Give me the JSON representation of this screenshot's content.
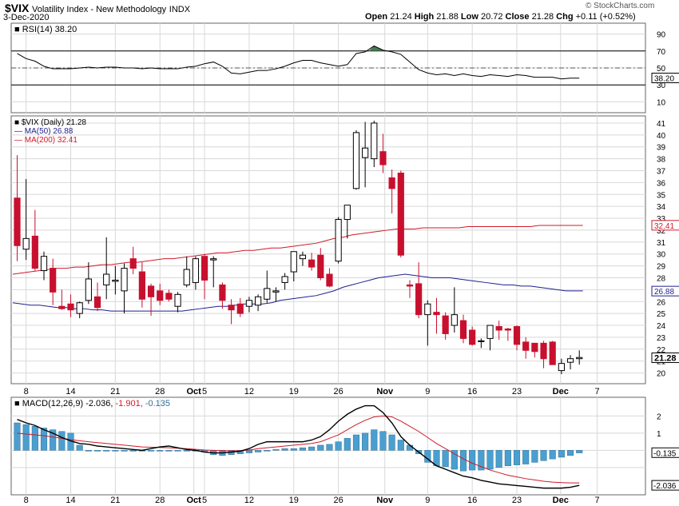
{
  "header": {
    "symbol": "$VIX",
    "name": "Volatility Index - New Methodology",
    "exchange": "INDX",
    "date": "3-Dec-2020",
    "open_label": "Open",
    "open_value": "21.24",
    "high_label": "High",
    "high_value": "21.88",
    "low_label": "Low",
    "low_value": "20.72",
    "close_label": "Close",
    "close_value": "21.28",
    "chg_label": "Chg",
    "chg_value": "+0.11 (+0.52%)",
    "watermark": "© StockCharts.com"
  },
  "colors": {
    "up": "#ffffff",
    "down": "#c8102e",
    "black": "#000000",
    "ma50": "#1f1f8f",
    "ma200": "#d01a2a",
    "macd_hist": "#4a9fd0",
    "rsi_fill": "#4a7a52",
    "grid": "#d8d8d8"
  },
  "chart_data": [
    {
      "type": "line",
      "title": "RSI(14) 38.20",
      "indicator": "RSI(14)",
      "last_value": "38.20",
      "y_ticks": [
        "90",
        "70",
        "50",
        "30",
        "10"
      ],
      "reference_lines": [
        70,
        30
      ],
      "midline": 50,
      "ylim": [
        0,
        100
      ],
      "values": [
        67,
        61,
        58,
        52,
        49,
        49,
        49,
        50,
        51,
        50,
        51,
        51,
        50,
        50,
        49,
        50,
        49,
        49,
        49,
        51,
        52,
        55,
        57,
        52,
        44,
        43,
        45,
        47,
        47,
        49,
        52,
        56,
        59,
        59,
        56,
        54,
        52,
        54,
        67,
        69,
        76,
        71,
        69,
        66,
        57,
        48,
        44,
        42,
        43,
        41,
        43,
        41,
        40,
        42,
        41,
        40,
        42,
        41,
        39,
        39,
        39,
        37,
        38,
        38
      ]
    },
    {
      "type": "candlestick",
      "title": "$VIX (Daily) 21.28",
      "legend": [
        {
          "name": "$VIX (Daily)",
          "value": "21.28"
        },
        {
          "name": "MA(50)",
          "value": "26.88"
        },
        {
          "name": "MA(200)",
          "value": "32.41"
        }
      ],
      "y_ticks": [
        "41",
        "40",
        "39",
        "38",
        "37",
        "36",
        "35",
        "34",
        "33",
        "32",
        "31",
        "30",
        "29",
        "28",
        "27",
        "26",
        "25",
        "24",
        "23",
        "22",
        "21",
        "20"
      ],
      "ylim": [
        19.3,
        41.4
      ],
      "last_close_label": "21.28",
      "ma50_label": "26.88",
      "ma200_label": "32.41",
      "x_ticks": [
        "8",
        "14",
        "21",
        "28",
        "Oct",
        "5",
        "12",
        "19",
        "26",
        "Nov",
        "9",
        "16",
        "23",
        "Dec",
        "7"
      ],
      "candles": [
        {
          "o": 34.7,
          "h": 38.3,
          "l": 29.4,
          "c": 30.7
        },
        {
          "o": 30.4,
          "h": 36.3,
          "l": 29.5,
          "c": 31.3
        },
        {
          "o": 31.5,
          "h": 33.7,
          "l": 28.6,
          "c": 28.8
        },
        {
          "o": 28.6,
          "h": 30.2,
          "l": 27.8,
          "c": 29.8
        },
        {
          "o": 28.8,
          "h": 29.6,
          "l": 25.7,
          "c": 26.8
        },
        {
          "o": 25.6,
          "h": 27.0,
          "l": 25.3,
          "c": 25.4
        },
        {
          "o": 25.8,
          "h": 26.6,
          "l": 24.7,
          "c": 25.3
        },
        {
          "o": 25.0,
          "h": 26.0,
          "l": 24.6,
          "c": 25.9
        },
        {
          "o": 26.1,
          "h": 29.3,
          "l": 25.8,
          "c": 27.9
        },
        {
          "o": 26.4,
          "h": 27.6,
          "l": 25.2,
          "c": 25.5
        },
        {
          "o": 27.4,
          "h": 31.4,
          "l": 26.2,
          "c": 28.3
        },
        {
          "o": 27.7,
          "h": 29.0,
          "l": 26.6,
          "c": 27.8
        },
        {
          "o": 26.9,
          "h": 29.2,
          "l": 25.0,
          "c": 28.8
        },
        {
          "o": 29.6,
          "h": 30.6,
          "l": 28.3,
          "c": 28.8
        },
        {
          "o": 28.5,
          "h": 29.3,
          "l": 25.5,
          "c": 26.2
        },
        {
          "o": 27.3,
          "h": 27.5,
          "l": 24.8,
          "c": 26.4
        },
        {
          "o": 26.9,
          "h": 27.5,
          "l": 25.7,
          "c": 26.1
        },
        {
          "o": 26.7,
          "h": 27.0,
          "l": 26.0,
          "c": 26.2
        },
        {
          "o": 25.6,
          "h": 26.8,
          "l": 25.1,
          "c": 26.6
        },
        {
          "o": 27.4,
          "h": 29.8,
          "l": 27.2,
          "c": 28.7
        },
        {
          "o": 27.6,
          "h": 29.8,
          "l": 27.0,
          "c": 29.6
        },
        {
          "o": 29.8,
          "h": 30.0,
          "l": 26.2,
          "c": 27.8
        },
        {
          "o": 29.5,
          "h": 29.8,
          "l": 27.2,
          "c": 29.6
        },
        {
          "o": 27.4,
          "h": 27.6,
          "l": 25.4,
          "c": 26.1
        },
        {
          "o": 25.7,
          "h": 26.2,
          "l": 24.1,
          "c": 25.3
        },
        {
          "o": 25.8,
          "h": 26.3,
          "l": 24.7,
          "c": 25.0
        },
        {
          "o": 25.6,
          "h": 26.4,
          "l": 25.1,
          "c": 26.1
        },
        {
          "o": 25.7,
          "h": 26.6,
          "l": 25.2,
          "c": 26.4
        },
        {
          "o": 26.2,
          "h": 28.6,
          "l": 25.9,
          "c": 27.1
        },
        {
          "o": 26.8,
          "h": 27.2,
          "l": 26.0,
          "c": 26.9
        },
        {
          "o": 27.6,
          "h": 28.4,
          "l": 27.0,
          "c": 28.1
        },
        {
          "o": 28.5,
          "h": 30.2,
          "l": 27.7,
          "c": 30.2
        },
        {
          "o": 29.6,
          "h": 30.2,
          "l": 29.0,
          "c": 29.9
        },
        {
          "o": 29.5,
          "h": 30.1,
          "l": 28.6,
          "c": 28.9
        },
        {
          "o": 29.9,
          "h": 30.5,
          "l": 27.8,
          "c": 28.0
        },
        {
          "o": 28.3,
          "h": 28.8,
          "l": 27.2,
          "c": 27.3
        },
        {
          "o": 29.4,
          "h": 33.1,
          "l": 29.2,
          "c": 32.9
        },
        {
          "o": 32.9,
          "h": 34.1,
          "l": 31.3,
          "c": 34.1
        },
        {
          "o": 35.5,
          "h": 40.4,
          "l": 35.4,
          "c": 40.2
        },
        {
          "o": 38.1,
          "h": 41.1,
          "l": 35.6,
          "c": 38.9
        },
        {
          "o": 38.0,
          "h": 41.2,
          "l": 37.3,
          "c": 41.0
        },
        {
          "o": 38.6,
          "h": 40.1,
          "l": 36.8,
          "c": 37.5
        },
        {
          "o": 36.4,
          "h": 37.1,
          "l": 33.4,
          "c": 35.5
        },
        {
          "o": 36.8,
          "h": 37.0,
          "l": 29.7,
          "c": 29.9
        },
        {
          "o": 27.4,
          "h": 27.8,
          "l": 26.3,
          "c": 27.3
        },
        {
          "o": 27.5,
          "h": 29.3,
          "l": 24.6,
          "c": 24.9
        },
        {
          "o": 24.9,
          "h": 26.1,
          "l": 22.3,
          "c": 25.8
        },
        {
          "o": 25.1,
          "h": 26.3,
          "l": 23.3,
          "c": 24.9
        },
        {
          "o": 24.8,
          "h": 25.1,
          "l": 22.8,
          "c": 23.3
        },
        {
          "o": 24.0,
          "h": 27.2,
          "l": 23.4,
          "c": 24.9
        },
        {
          "o": 24.4,
          "h": 24.9,
          "l": 22.5,
          "c": 22.9
        },
        {
          "o": 23.6,
          "h": 23.9,
          "l": 22.3,
          "c": 22.4
        },
        {
          "o": 22.7,
          "h": 22.9,
          "l": 22.1,
          "c": 22.7
        },
        {
          "o": 22.9,
          "h": 24.0,
          "l": 21.9,
          "c": 24.0
        },
        {
          "o": 23.9,
          "h": 24.4,
          "l": 22.8,
          "c": 23.6
        },
        {
          "o": 23.7,
          "h": 23.8,
          "l": 22.7,
          "c": 23.6
        },
        {
          "o": 23.9,
          "h": 24.0,
          "l": 21.9,
          "c": 22.4
        },
        {
          "o": 22.6,
          "h": 23.0,
          "l": 21.2,
          "c": 21.9
        },
        {
          "o": 22.5,
          "h": 22.5,
          "l": 21.3,
          "c": 21.8
        },
        {
          "o": 22.5,
          "h": 22.7,
          "l": 20.4,
          "c": 21.2
        },
        {
          "o": 22.6,
          "h": 22.7,
          "l": 20.7,
          "c": 20.7
        },
        {
          "o": 20.2,
          "h": 21.2,
          "l": 19.9,
          "c": 20.8
        },
        {
          "o": 20.9,
          "h": 21.5,
          "l": 20.3,
          "c": 21.2
        },
        {
          "o": 21.2,
          "h": 21.9,
          "l": 20.7,
          "c": 21.3
        }
      ],
      "series": [
        {
          "name": "MA(50)",
          "values": [
            25.9,
            25.8,
            25.7,
            25.7,
            25.6,
            25.5,
            25.5,
            25.4,
            25.4,
            25.3,
            25.3,
            25.2,
            25.2,
            25.2,
            25.2,
            25.2,
            25.2,
            25.2,
            25.2,
            25.2,
            25.3,
            25.4,
            25.5,
            25.6,
            25.6,
            25.7,
            25.8,
            25.8,
            25.8,
            25.9,
            26.1,
            26.2,
            26.3,
            26.4,
            26.5,
            26.7,
            26.9,
            27.2,
            27.4,
            27.6,
            27.8,
            28.0,
            28.1,
            28.2,
            28.3,
            28.2,
            28.1,
            28.0,
            28.0,
            28.0,
            27.9,
            27.8,
            27.7,
            27.6,
            27.5,
            27.4,
            27.4,
            27.3,
            27.3,
            27.2,
            27.1,
            27.0,
            26.9,
            26.9
          ]
        },
        {
          "name": "MA(200)",
          "values": [
            28.3,
            28.4,
            28.5,
            28.6,
            28.7,
            28.8,
            28.8,
            28.9,
            28.9,
            29.0,
            29.1,
            29.1,
            29.2,
            29.3,
            29.3,
            29.4,
            29.5,
            29.6,
            29.6,
            29.7,
            29.8,
            29.9,
            30.0,
            30.1,
            30.1,
            30.2,
            30.3,
            30.3,
            30.4,
            30.5,
            30.5,
            30.6,
            30.7,
            30.8,
            30.9,
            31.1,
            31.3,
            31.4,
            31.6,
            31.7,
            31.8,
            31.9,
            32.0,
            32.1,
            32.1,
            32.1,
            32.2,
            32.2,
            32.2,
            32.2,
            32.2,
            32.3,
            32.3,
            32.3,
            32.3,
            32.3,
            32.3,
            32.3,
            32.3,
            32.4,
            32.4,
            32.4,
            32.4,
            32.4
          ]
        }
      ]
    },
    {
      "type": "line",
      "title": "MACD(12,26,9) -2.036, -1.901, -0.135",
      "indicator": "MACD(12,26,9)",
      "values_text": [
        "-2.036",
        "-1.901",
        "-0.135"
      ],
      "y_ticks": [
        "2",
        "1",
        "0",
        "-0.135",
        "-1",
        "-2.036"
      ],
      "ylim": [
        -2.45,
        2.95
      ],
      "x_ticks": [
        "8",
        "14",
        "21",
        "28",
        "Oct",
        "5",
        "12",
        "19",
        "26",
        "Nov",
        "9",
        "16",
        "23",
        "Dec",
        "7"
      ],
      "series": [
        {
          "name": "MACD",
          "values": [
            1.8,
            1.6,
            1.45,
            1.2,
            1.0,
            0.75,
            0.55,
            0.4,
            0.35,
            0.25,
            0.2,
            0.15,
            0.1,
            0.05,
            0.0,
            0.1,
            0.2,
            0.25,
            0.15,
            0.05,
            0.0,
            -0.1,
            -0.15,
            -0.15,
            -0.1,
            -0.05,
            0.1,
            0.35,
            0.5,
            0.5,
            0.5,
            0.5,
            0.5,
            0.6,
            0.8,
            1.2,
            1.7,
            2.1,
            2.4,
            2.6,
            2.6,
            2.2,
            1.6,
            0.8,
            0.3,
            -0.1,
            -0.5,
            -0.9,
            -1.1,
            -1.3,
            -1.5,
            -1.6,
            -1.75,
            -1.85,
            -1.95,
            -2.0,
            -2.05,
            -2.1,
            -2.15,
            -2.2,
            -2.2,
            -2.2,
            -2.15,
            -2.04
          ]
        },
        {
          "name": "Signal",
          "values": [
            1.0,
            0.95,
            0.9,
            0.85,
            0.78,
            0.7,
            0.62,
            0.56,
            0.5,
            0.45,
            0.4,
            0.35,
            0.3,
            0.25,
            0.2,
            0.18,
            0.17,
            0.15,
            0.12,
            0.1,
            0.06,
            0.02,
            0.0,
            -0.02,
            -0.03,
            -0.02,
            0.02,
            0.1,
            0.15,
            0.2,
            0.25,
            0.3,
            0.35,
            0.4,
            0.5,
            0.7,
            0.9,
            1.2,
            1.5,
            1.75,
            1.95,
            2.0,
            1.95,
            1.7,
            1.4,
            1.1,
            0.75,
            0.4,
            0.1,
            -0.2,
            -0.5,
            -0.75,
            -0.95,
            -1.15,
            -1.3,
            -1.45,
            -1.55,
            -1.65,
            -1.72,
            -1.8,
            -1.85,
            -1.88,
            -1.9,
            -1.9
          ]
        },
        {
          "name": "Histogram",
          "values": [
            1.6,
            1.5,
            1.4,
            1.3,
            1.2,
            1.1,
            1.0,
            0.3,
            0.0,
            0.0,
            0.0,
            0.0,
            -0.05,
            -0.05,
            0.0,
            0.0,
            0.0,
            0.0,
            0.0,
            0.0,
            -0.05,
            -0.1,
            -0.25,
            -0.3,
            -0.25,
            -0.2,
            -0.15,
            -0.1,
            0.0,
            0.05,
            0.1,
            0.1,
            0.15,
            0.2,
            0.3,
            0.35,
            0.5,
            0.7,
            0.9,
            1.0,
            1.2,
            1.1,
            0.9,
            0.6,
            0.3,
            -0.2,
            -0.7,
            -0.9,
            -0.95,
            -1.1,
            -1.2,
            -1.15,
            -1.15,
            -1.1,
            -1.0,
            -0.9,
            -0.85,
            -0.8,
            -0.7,
            -0.6,
            -0.5,
            -0.4,
            -0.3,
            -0.15
          ]
        }
      ]
    }
  ]
}
